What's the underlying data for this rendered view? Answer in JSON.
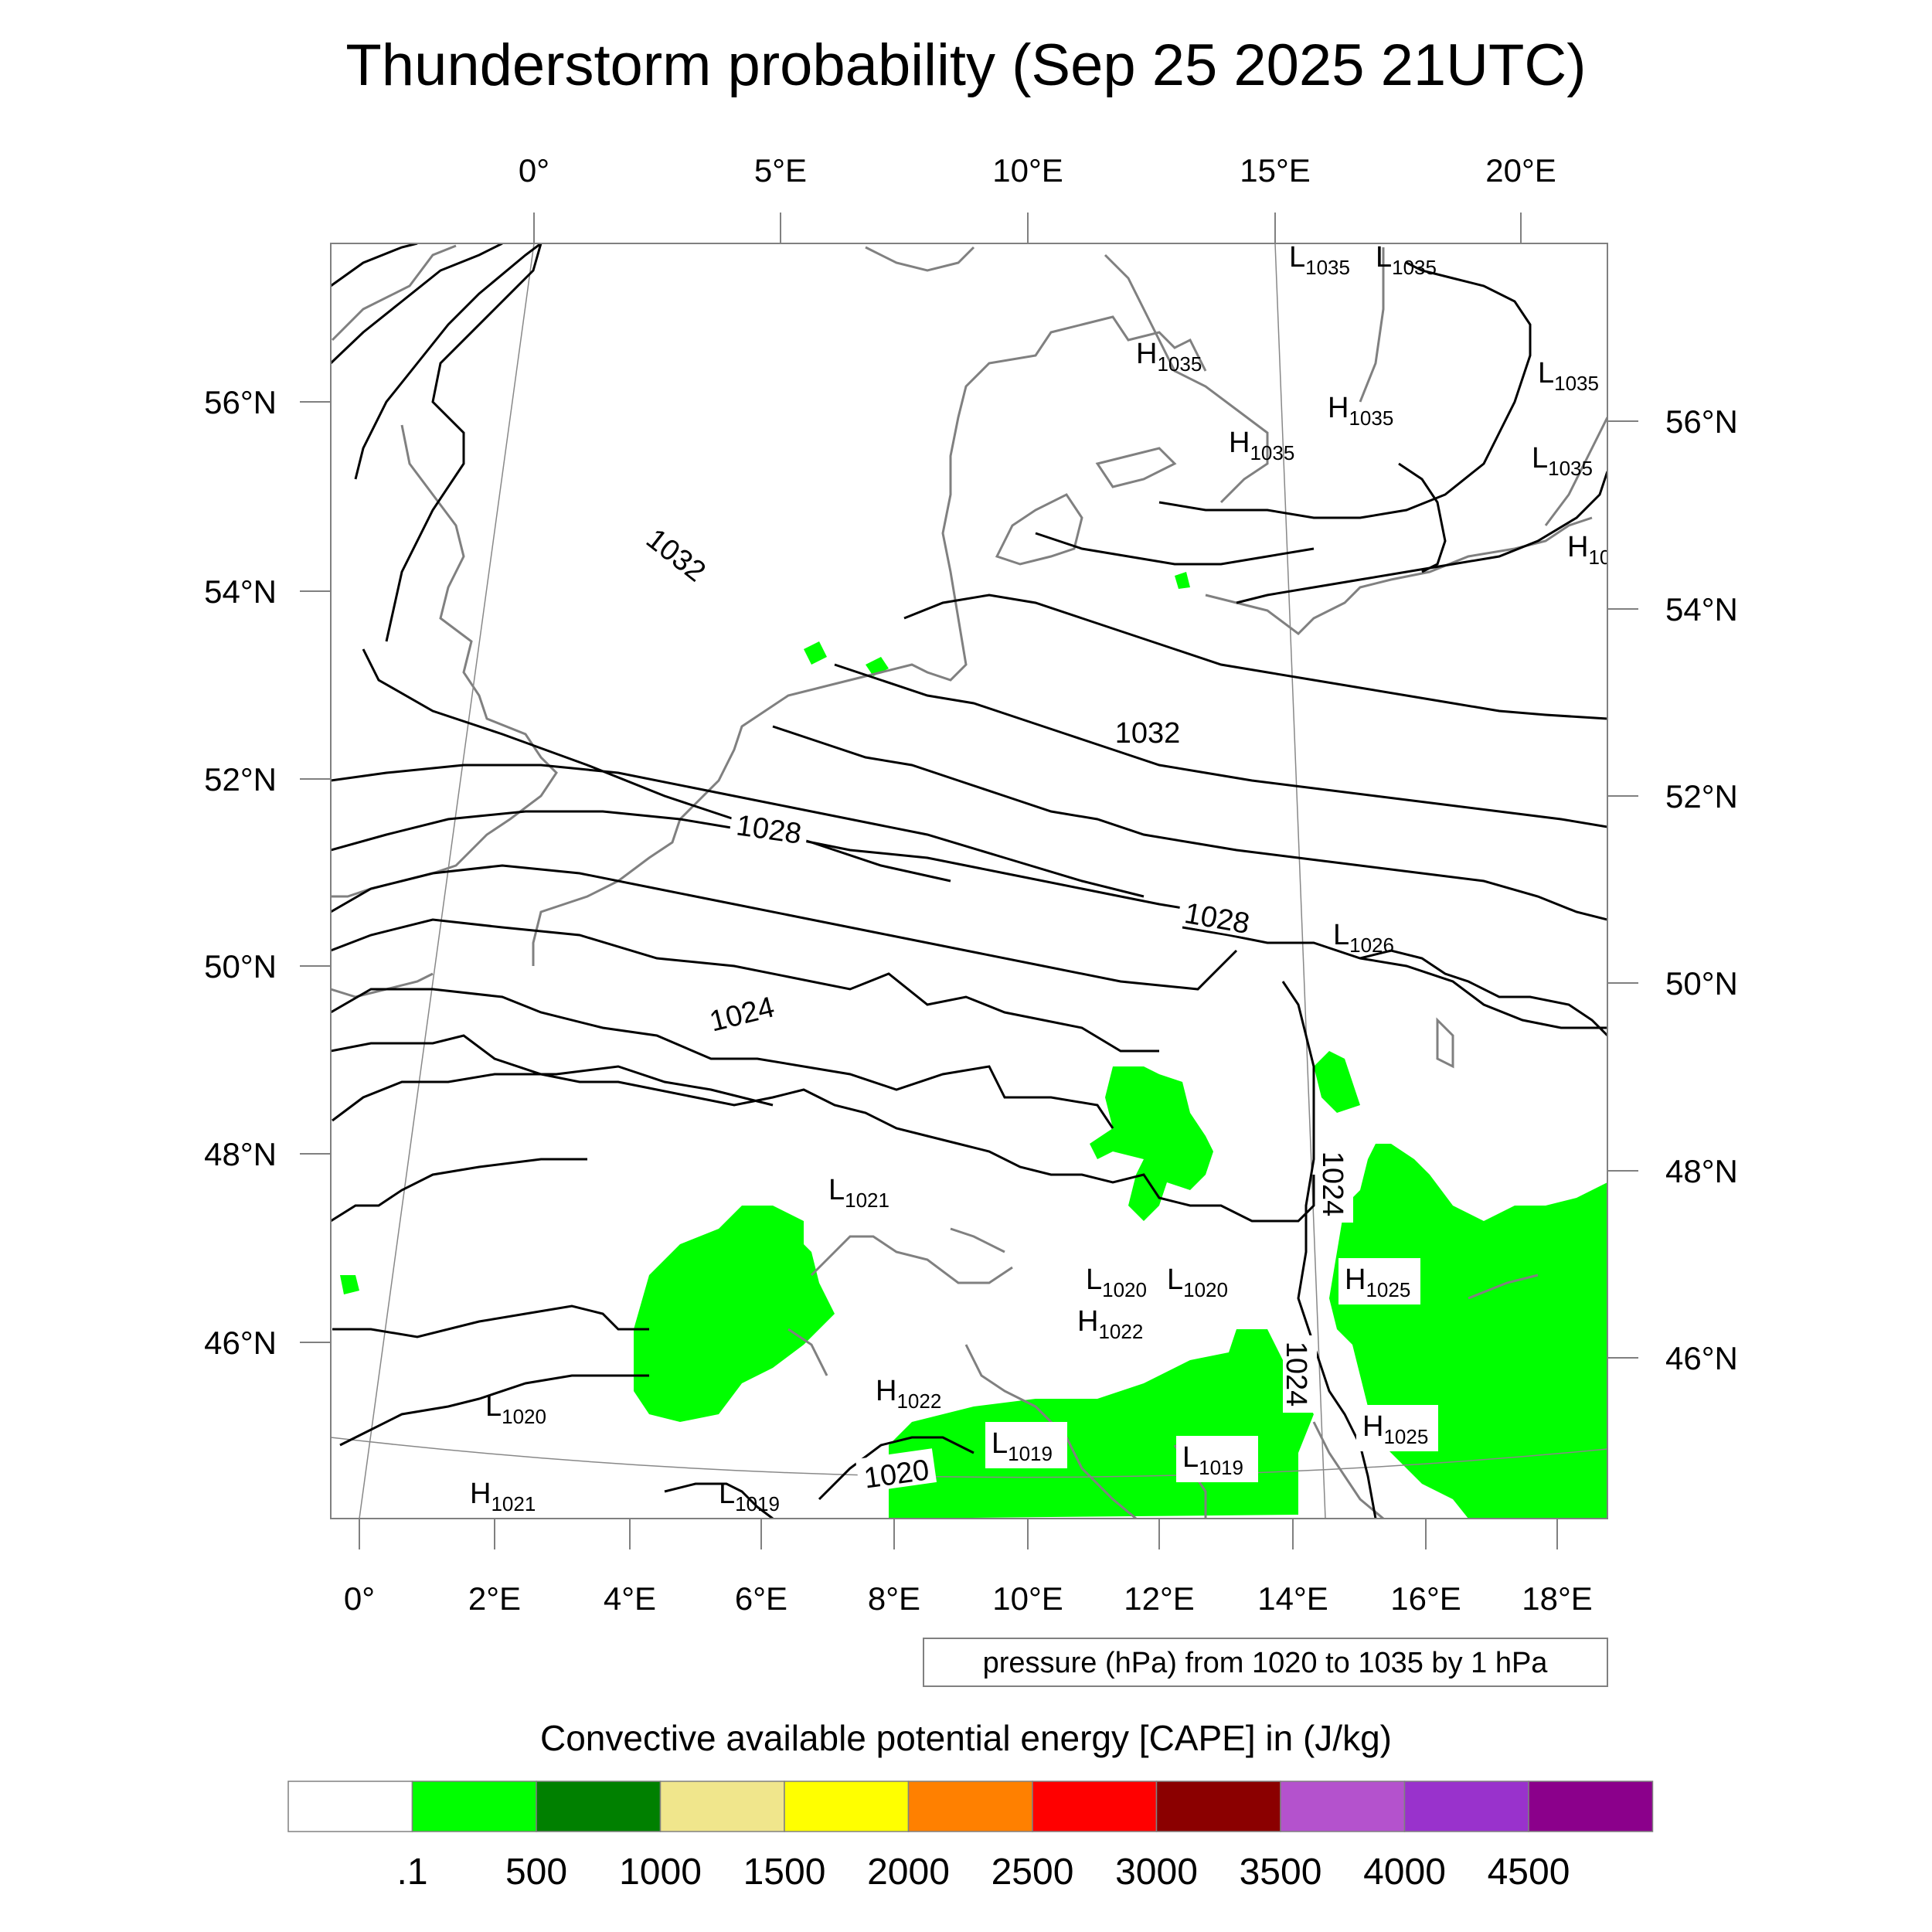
{
  "title": "Thunderstorm probability (Sep 25 2025 21UTC)",
  "top_lon_labels": [
    "0°",
    "5°E",
    "10°E",
    "15°E",
    "20°E"
  ],
  "bottom_lon_labels": [
    "0°",
    "2°E",
    "4°E",
    "6°E",
    "8°E",
    "10°E",
    "12°E",
    "14°E",
    "16°E",
    "18°E"
  ],
  "left_lat_labels": [
    "56°N",
    "54°N",
    "52°N",
    "50°N",
    "48°N",
    "46°N"
  ],
  "right_lat_labels": [
    "56°N",
    "54°N",
    "52°N",
    "50°N",
    "48°N",
    "46°N"
  ],
  "isobar_labels": [
    "1032",
    "1032",
    "1028",
    "1028",
    "1024",
    "1024",
    "1024",
    "1020"
  ],
  "pressure_centers": [
    {
      "letter": "L",
      "value": "1035"
    },
    {
      "letter": "L",
      "value": "1035"
    },
    {
      "letter": "H",
      "value": "1035"
    },
    {
      "letter": "L",
      "value": "1035"
    },
    {
      "letter": "H",
      "value": "1035"
    },
    {
      "letter": "H",
      "value": "1035"
    },
    {
      "letter": "L",
      "value": "1035"
    },
    {
      "letter": "H",
      "value": "10"
    },
    {
      "letter": "L",
      "value": "1026"
    },
    {
      "letter": "L",
      "value": "1021"
    },
    {
      "letter": "L",
      "value": "1020"
    },
    {
      "letter": "L",
      "value": "1020"
    },
    {
      "letter": "H",
      "value": "1022"
    },
    {
      "letter": "H",
      "value": "1025"
    },
    {
      "letter": "H",
      "value": "1022"
    },
    {
      "letter": "L",
      "value": "1020"
    },
    {
      "letter": "L",
      "value": "1019"
    },
    {
      "letter": "L",
      "value": "1019"
    },
    {
      "letter": "H",
      "value": "1025"
    },
    {
      "letter": "H",
      "value": "1021"
    },
    {
      "letter": "L",
      "value": "1019"
    }
  ],
  "contour_info": "pressure (hPa) from 1020 to 1035 by 1 hPa",
  "colorbar": {
    "title": "Convective available potential energy [CAPE] in (J/kg)",
    "colors": [
      "#ffffff",
      "#00ff00",
      "#008000",
      "#f0e68c",
      "#ffff00",
      "#ff8000",
      "#ff0000",
      "#8b0000",
      "#b452cd",
      "#9932cc",
      "#8b008b"
    ],
    "tick_labels": [
      ".1",
      "500",
      "1000",
      "1500",
      "2000",
      "2500",
      "3000",
      "3500",
      "4000",
      "4500"
    ]
  },
  "colors": {
    "isobar": "#000000",
    "coastline": "#808080",
    "cape_low": "#00ff00"
  }
}
